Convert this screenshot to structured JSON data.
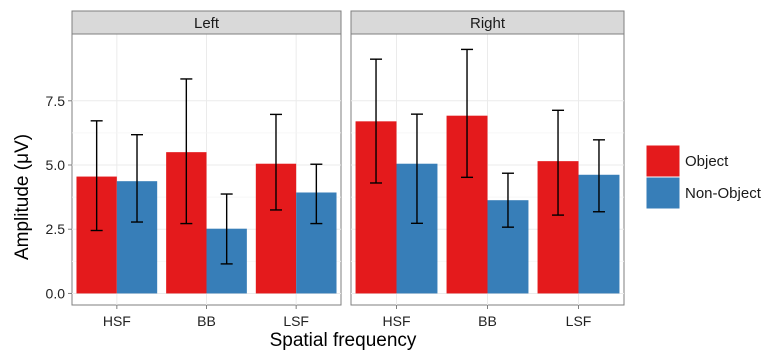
{
  "chart_data": {
    "type": "bar",
    "facets": [
      "Left",
      "Right"
    ],
    "categories": [
      "HSF",
      "BB",
      "LSF"
    ],
    "series": [
      {
        "name": "Object",
        "color": "#e41a1c",
        "values": [
          [
            4.55,
            5.5,
            5.05
          ],
          [
            6.7,
            6.92,
            5.15
          ]
        ],
        "error_low": [
          [
            2.45,
            2.72,
            3.25
          ],
          [
            4.3,
            4.52,
            3.05
          ]
        ],
        "error_high": [
          [
            6.72,
            8.35,
            6.97
          ],
          [
            9.12,
            9.5,
            7.13
          ]
        ]
      },
      {
        "name": "Non-Object",
        "color": "#377eb8",
        "values": [
          [
            4.37,
            2.52,
            3.93
          ],
          [
            5.05,
            3.63,
            4.62
          ]
        ],
        "error_low": [
          [
            2.78,
            1.15,
            2.72
          ],
          [
            2.73,
            2.58,
            3.18
          ]
        ],
        "error_high": [
          [
            6.18,
            3.87,
            5.03
          ],
          [
            6.98,
            4.68,
            5.98
          ]
        ]
      }
    ],
    "xlabel": "Spatial frequency",
    "ylabel": "Amplitude (μV)",
    "ylim": [
      -0.45,
      10.1
    ],
    "yticks": [
      "0.0",
      "2.5",
      "5.0",
      "7.5"
    ],
    "ytick_values": [
      0,
      2.5,
      5,
      7.5
    ],
    "grid": true,
    "legend_position": "right"
  }
}
